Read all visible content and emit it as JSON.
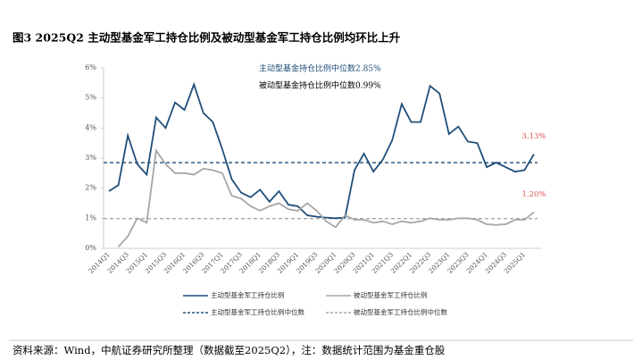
{
  "chart_data": {
    "type": "line",
    "title": "图3 2025Q2 主动型基金军工持仓比例及被动型基金军工持仓比例均环比上升",
    "source": "资料来源：Wind，中航证券研究所整理（数据截至2025Q2），注：数据统计范围为基金重仓股",
    "categories": [
      "2014Q1",
      null,
      "2014Q3",
      null,
      "2015Q1",
      null,
      "2015Q3",
      null,
      "2016Q1",
      null,
      "2016Q3",
      null,
      "2017Q1",
      null,
      "2017Q3",
      null,
      "2018Q1",
      null,
      "2018Q3",
      null,
      "2019Q1",
      null,
      "2019Q3",
      null,
      "2020Q1",
      null,
      "2020Q3",
      null,
      "2021Q1",
      null,
      "2021Q3",
      null,
      "2022Q1",
      null,
      "2022Q3",
      null,
      "2023Q1",
      null,
      "2023Q3",
      null,
      "2024Q1",
      null,
      "2024Q3",
      null,
      "2025Q1",
      null
    ],
    "series": [
      {
        "name": "主动型基金军工持仓比例",
        "color": "#1f4e79",
        "values": [
          1.9,
          2.1,
          3.75,
          2.8,
          2.45,
          4.35,
          4.0,
          4.85,
          4.6,
          5.45,
          4.5,
          4.2,
          3.3,
          2.3,
          1.85,
          1.7,
          1.95,
          1.55,
          1.9,
          1.45,
          1.4,
          1.1,
          1.05,
          1.02,
          1.0,
          1.02,
          2.6,
          3.15,
          2.55,
          2.95,
          3.6,
          4.8,
          4.2,
          4.2,
          5.4,
          5.15,
          3.8,
          4.05,
          3.55,
          3.5,
          2.7,
          2.85,
          2.7,
          2.55,
          2.6,
          3.13
        ],
        "value_labels": [
          null,
          null,
          null,
          null,
          null,
          null,
          null,
          null,
          null,
          null,
          null,
          null,
          null,
          null,
          null,
          null,
          null,
          null,
          null,
          null,
          null,
          null,
          null,
          null,
          null,
          null,
          null,
          null,
          null,
          null,
          null,
          null,
          null,
          null,
          null,
          null,
          null,
          null,
          null,
          null,
          null,
          null,
          null,
          null,
          null,
          "3.13%"
        ],
        "label_color": "#d9534f"
      },
      {
        "name": "被动型基金军工持仓比例",
        "color": "#a6a6a6",
        "values": [
          null,
          0.05,
          0.4,
          1.0,
          0.85,
          3.25,
          2.8,
          2.5,
          2.5,
          2.45,
          2.65,
          2.6,
          2.5,
          1.75,
          1.65,
          1.4,
          1.25,
          1.4,
          1.5,
          1.3,
          1.25,
          1.5,
          1.25,
          0.9,
          0.7,
          1.1,
          0.95,
          0.95,
          0.85,
          0.9,
          0.8,
          0.9,
          0.85,
          0.9,
          1.0,
          0.95,
          0.95,
          1.0,
          1.0,
          0.95,
          0.8,
          0.78,
          0.8,
          0.95,
          0.95,
          1.2
        ],
        "value_labels": [
          null,
          null,
          null,
          null,
          null,
          null,
          null,
          null,
          null,
          null,
          null,
          null,
          null,
          null,
          null,
          null,
          null,
          null,
          null,
          null,
          null,
          null,
          null,
          null,
          null,
          null,
          null,
          null,
          null,
          null,
          null,
          null,
          null,
          null,
          null,
          null,
          null,
          null,
          null,
          null,
          null,
          null,
          null,
          null,
          null,
          "1.20%"
        ],
        "label_color": "#d9534f"
      }
    ],
    "reference_lines": [
      {
        "name": "主动型基金军工持仓比例中位数",
        "value": 2.85,
        "label": "主动型基金持仓比例中位数2.85%",
        "color": "#1f4e79",
        "label_color": "#1f4e79"
      },
      {
        "name": "被动型基金军工持仓比例中位数",
        "value": 0.99,
        "label": "被动型基金持仓比例中位数0.99%",
        "color": "#a6a6a6",
        "label_color": "#000000"
      }
    ],
    "ylim": [
      0,
      6
    ],
    "yticks": [
      {
        "value": 0,
        "label": "0%"
      },
      {
        "value": 1,
        "label": "1%"
      },
      {
        "value": 2,
        "label": "2%"
      },
      {
        "value": 3,
        "label": "3%"
      },
      {
        "value": 4,
        "label": "4%"
      },
      {
        "value": 5,
        "label": "5%"
      },
      {
        "value": 6,
        "label": "6%"
      }
    ],
    "grid": false
  }
}
